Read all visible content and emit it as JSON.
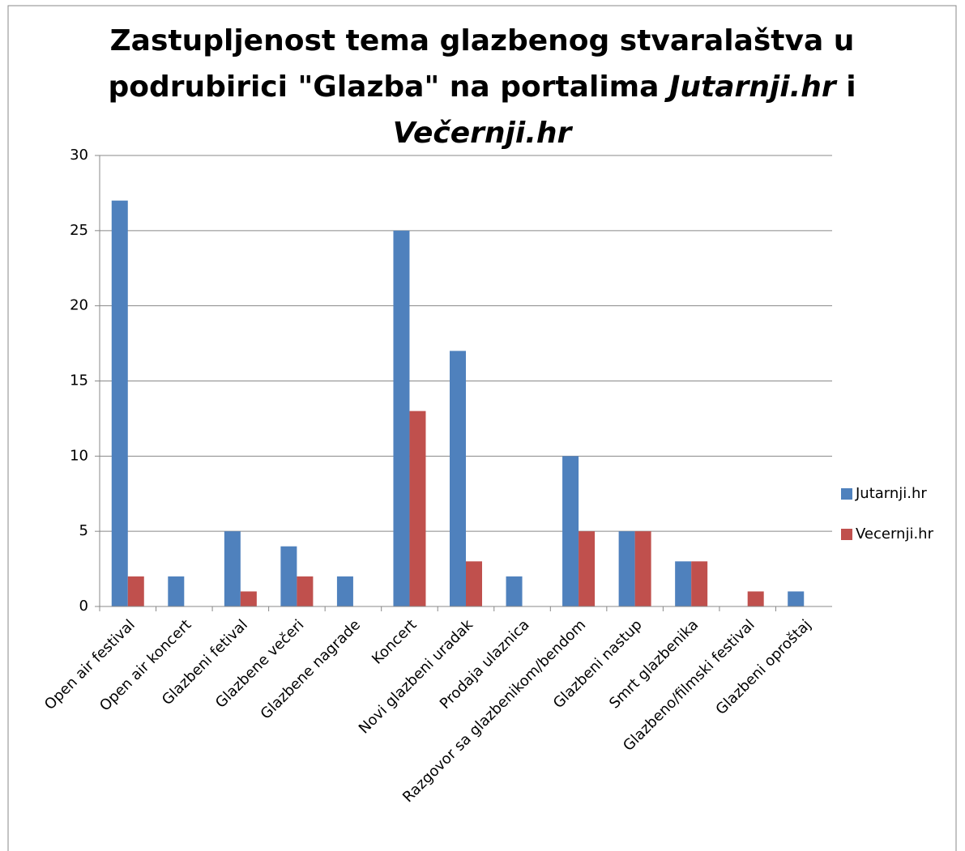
{
  "chart_data": {
    "type": "bar",
    "title": [
      "Zastupljenost tema glazbenog stvaralaštva u podrubirici \"Glazba\" na portalima ",
      "Jutarnji.hr",
      " i ",
      "Večernji.hr"
    ],
    "title_italic": [
      false,
      true,
      false,
      true
    ],
    "categories": [
      "Open air festival",
      "Open air koncert",
      "Glazbeni fetival",
      "Glazbene večeri",
      "Glazbene nagrade",
      "Koncert",
      "Novi glazbeni uradak",
      "Prodaja ulaznica",
      "Razgovor sa glazbenikom/bendom",
      "Glazbeni nastup",
      "Smrt glazbenika",
      "Glazbeno/filmski festival",
      "Glazbeni oproštaj"
    ],
    "series": [
      {
        "name": "Jutarnji.hr",
        "color": "#4f81bd",
        "values": [
          27,
          2,
          5,
          4,
          2,
          25,
          17,
          2,
          10,
          5,
          3,
          0,
          1
        ]
      },
      {
        "name": "Vecernji.hr",
        "color": "#c0504d",
        "values": [
          2,
          0,
          1,
          2,
          0,
          13,
          3,
          0,
          5,
          5,
          3,
          1,
          0
        ]
      }
    ],
    "ylim": [
      0,
      30
    ],
    "yticks": [
      0,
      5,
      10,
      15,
      20,
      25,
      30
    ],
    "grid": true,
    "legend": "right"
  }
}
